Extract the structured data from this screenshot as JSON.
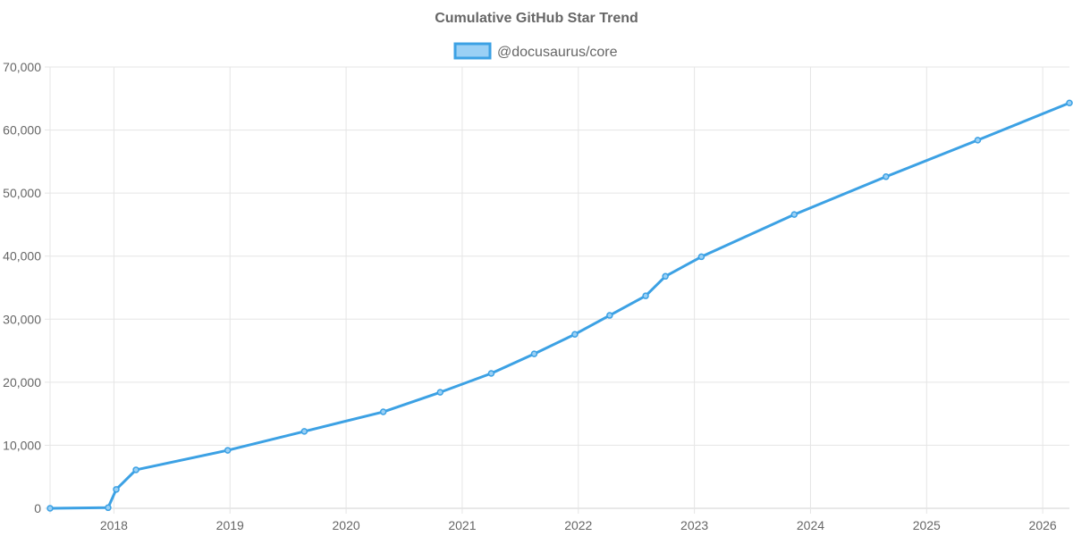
{
  "chart_data": {
    "type": "line",
    "title": "Cumulative GitHub Star Trend",
    "legend_position": "top-center",
    "xlabel": "",
    "ylabel": "",
    "xlim": [
      2017.45,
      2026.23
    ],
    "ylim": [
      0,
      70000
    ],
    "x_ticks": [
      2018,
      2019,
      2020,
      2021,
      2022,
      2023,
      2024,
      2025,
      2026
    ],
    "y_ticks": [
      0,
      10000,
      20000,
      30000,
      40000,
      50000,
      60000,
      70000
    ],
    "y_tick_labels": [
      "0",
      "10,000",
      "20,000",
      "30,000",
      "40,000",
      "50,000",
      "60,000",
      "70,000"
    ],
    "grid": true,
    "series": [
      {
        "name": "@docusaurus/core",
        "color": "#3ca1e4",
        "fill": "#9ad0f5",
        "x": [
          2017.45,
          2017.95,
          2018.02,
          2018.19,
          2018.98,
          2019.64,
          2020.32,
          2020.81,
          2021.25,
          2021.62,
          2021.97,
          2022.27,
          2022.58,
          2022.75,
          2023.06,
          2023.86,
          2024.65,
          2025.44,
          2026.23
        ],
        "y": [
          0,
          100,
          3000,
          6100,
          9200,
          12200,
          15300,
          18400,
          21400,
          24500,
          27600,
          30600,
          33700,
          36800,
          39900,
          46600,
          52600,
          58400,
          64300
        ]
      }
    ]
  }
}
